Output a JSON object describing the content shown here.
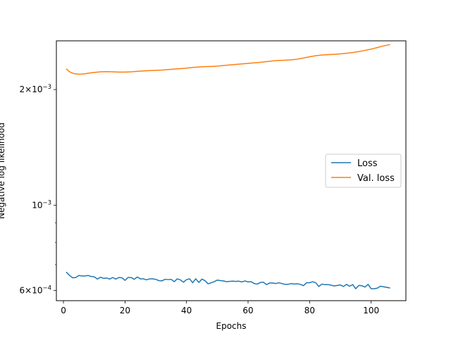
{
  "chart_data": {
    "type": "line",
    "xlabel": "Epochs",
    "ylabel": "Negative log likelihood",
    "xlim": [
      -2.3,
      111.3
    ],
    "ylim": [
      0.000564,
      0.002678
    ],
    "yscale": "log",
    "x_ticks": [
      0,
      20,
      40,
      60,
      80,
      100
    ],
    "y_tick_values": [
      0.0006,
      0.001,
      0.002
    ],
    "y_tick_labels": [
      {
        "mantissa": "6",
        "exponent": "−4"
      },
      {
        "mantissa": "",
        "exponent": "−3"
      },
      {
        "mantissa": "2",
        "exponent": "−3"
      }
    ],
    "y_minor_ticks": [
      0.0007,
      0.0008,
      0.0009
    ],
    "legend_placement": "center-right",
    "grid": false,
    "series": [
      {
        "name": "Loss",
        "color": "#1f77b4",
        "x": [
          1,
          2,
          3,
          4,
          5,
          6,
          7,
          8,
          9,
          10,
          11,
          12,
          13,
          14,
          15,
          16,
          17,
          18,
          19,
          20,
          21,
          22,
          23,
          24,
          25,
          26,
          27,
          28,
          29,
          30,
          31,
          32,
          33,
          34,
          35,
          36,
          37,
          38,
          39,
          40,
          41,
          42,
          43,
          44,
          45,
          46,
          47,
          48,
          49,
          50,
          51,
          52,
          53,
          54,
          55,
          56,
          57,
          58,
          59,
          60,
          61,
          62,
          63,
          64,
          65,
          66,
          67,
          68,
          69,
          70,
          71,
          72,
          73,
          74,
          75,
          76,
          77,
          78,
          79,
          80,
          81,
          82,
          83,
          84,
          85,
          86,
          87,
          88,
          89,
          90,
          91,
          92,
          93,
          94,
          95,
          96,
          97,
          98,
          99,
          100,
          101,
          102,
          103,
          104,
          105,
          106
        ],
        "values": [
          0.000668,
          0.000656,
          0.000647,
          0.000648,
          0.000656,
          0.000654,
          0.000654,
          0.000656,
          0.000652,
          0.000651,
          0.000642,
          0.000649,
          0.000645,
          0.000646,
          0.000642,
          0.000648,
          0.000642,
          0.000648,
          0.000647,
          0.000637,
          0.000648,
          0.000648,
          0.000641,
          0.00065,
          0.000643,
          0.000643,
          0.000639,
          0.000643,
          0.000643,
          0.000641,
          0.000636,
          0.000635,
          0.000641,
          0.00064,
          0.000641,
          0.000632,
          0.000643,
          0.000639,
          0.00063,
          0.00064,
          0.000643,
          0.000628,
          0.000643,
          0.000629,
          0.000642,
          0.000636,
          0.000624,
          0.000628,
          0.000632,
          0.000638,
          0.000636,
          0.000635,
          0.000632,
          0.000633,
          0.000634,
          0.000633,
          0.000634,
          0.000631,
          0.000635,
          0.000631,
          0.000632,
          0.000625,
          0.000623,
          0.000629,
          0.00063,
          0.000621,
          0.000627,
          0.000627,
          0.000625,
          0.000628,
          0.000625,
          0.000622,
          0.000622,
          0.000625,
          0.000623,
          0.000624,
          0.000622,
          0.000617,
          0.000628,
          0.000628,
          0.000632,
          0.000628,
          0.000614,
          0.000623,
          0.000621,
          0.000621,
          0.000619,
          0.000616,
          0.000618,
          0.00062,
          0.000614,
          0.000622,
          0.000615,
          0.000621,
          0.000606,
          0.000618,
          0.000617,
          0.000612,
          0.000622,
          0.000606,
          0.000606,
          0.000608,
          0.000615,
          0.000613,
          0.000611,
          0.000609
        ]
      },
      {
        "name": "Val. loss",
        "color": "#ff7f0e",
        "x": [
          1,
          2,
          3,
          4,
          5,
          6,
          7,
          8,
          9,
          10,
          12,
          14,
          16,
          18,
          20,
          22,
          24,
          26,
          28,
          30,
          32,
          34,
          36,
          38,
          40,
          42,
          44,
          46,
          48,
          50,
          52,
          54,
          56,
          58,
          60,
          62,
          64,
          66,
          68,
          70,
          72,
          74,
          76,
          78,
          80,
          82,
          84,
          86,
          88,
          90,
          92,
          94,
          96,
          98,
          100,
          102,
          104,
          106
        ],
        "values": [
          0.00226,
          0.002225,
          0.002206,
          0.002196,
          0.002193,
          0.002194,
          0.002198,
          0.002205,
          0.002211,
          0.002216,
          0.002224,
          0.002226,
          0.002224,
          0.002221,
          0.00222,
          0.002224,
          0.002231,
          0.002236,
          0.002241,
          0.002244,
          0.002248,
          0.002255,
          0.002261,
          0.002267,
          0.002274,
          0.002283,
          0.00229,
          0.002294,
          0.002297,
          0.002301,
          0.00231,
          0.002318,
          0.002325,
          0.002332,
          0.002339,
          0.002347,
          0.002355,
          0.002364,
          0.002374,
          0.002381,
          0.002385,
          0.00239,
          0.002399,
          0.002416,
          0.002434,
          0.00245,
          0.00246,
          0.002465,
          0.00247,
          0.002477,
          0.002486,
          0.002496,
          0.002511,
          0.002529,
          0.002548,
          0.002573,
          0.002598,
          0.002617
        ]
      }
    ]
  }
}
